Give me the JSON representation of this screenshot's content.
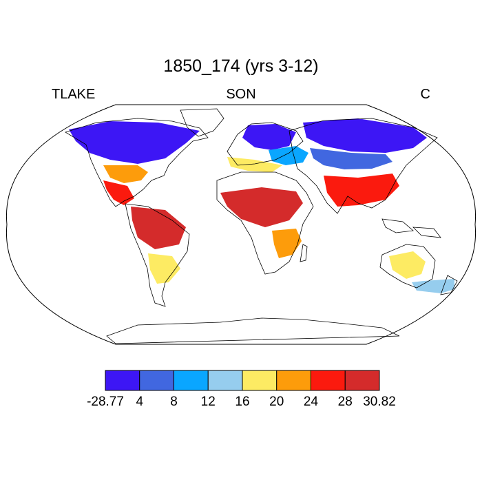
{
  "title": "1850_174 (yrs 3-12)",
  "left_string": "TLAKE",
  "center_string": "SON",
  "right_string": "C",
  "colorbar": {
    "colors": [
      "#3d16f5",
      "#4167e0",
      "#0aa6ff",
      "#96cdee",
      "#fdeb63",
      "#fd9c0b",
      "#fb1a0e",
      "#d42b2b"
    ],
    "labels": [
      "-28.77",
      "4",
      "8",
      "12",
      "16",
      "20",
      "24",
      "28",
      "30.82"
    ]
  },
  "chart_data": {
    "type": "heatmap",
    "projection": "Robinson",
    "variable": "TLAKE",
    "season": "SON",
    "units": "C",
    "min": -28.77,
    "max": 30.82,
    "levels": [
      4,
      8,
      12,
      16,
      20,
      24,
      28
    ],
    "regions": [
      {
        "name": "Canada / Alaska",
        "value": -26
      },
      {
        "name": "Northern Europe / Scandinavia",
        "value": -22
      },
      {
        "name": "Siberia / Northern Asia",
        "value": -24
      },
      {
        "name": "Central Asia",
        "value": 6
      },
      {
        "name": "Eastern Europe",
        "value": 10
      },
      {
        "name": "Mediterranean",
        "value": 18
      },
      {
        "name": "United States (south)",
        "value": 22
      },
      {
        "name": "Mexico / Central America",
        "value": 27
      },
      {
        "name": "Amazon Basin",
        "value": 29
      },
      {
        "name": "Southern South America",
        "value": 17
      },
      {
        "name": "Sahel / Central Africa",
        "value": 28
      },
      {
        "name": "Southern Africa",
        "value": 22
      },
      {
        "name": "India / Southeast Asia",
        "value": 27
      },
      {
        "name": "Australia",
        "value": 18
      },
      {
        "name": "Tasmania / New Zealand",
        "value": 13
      }
    ]
  }
}
